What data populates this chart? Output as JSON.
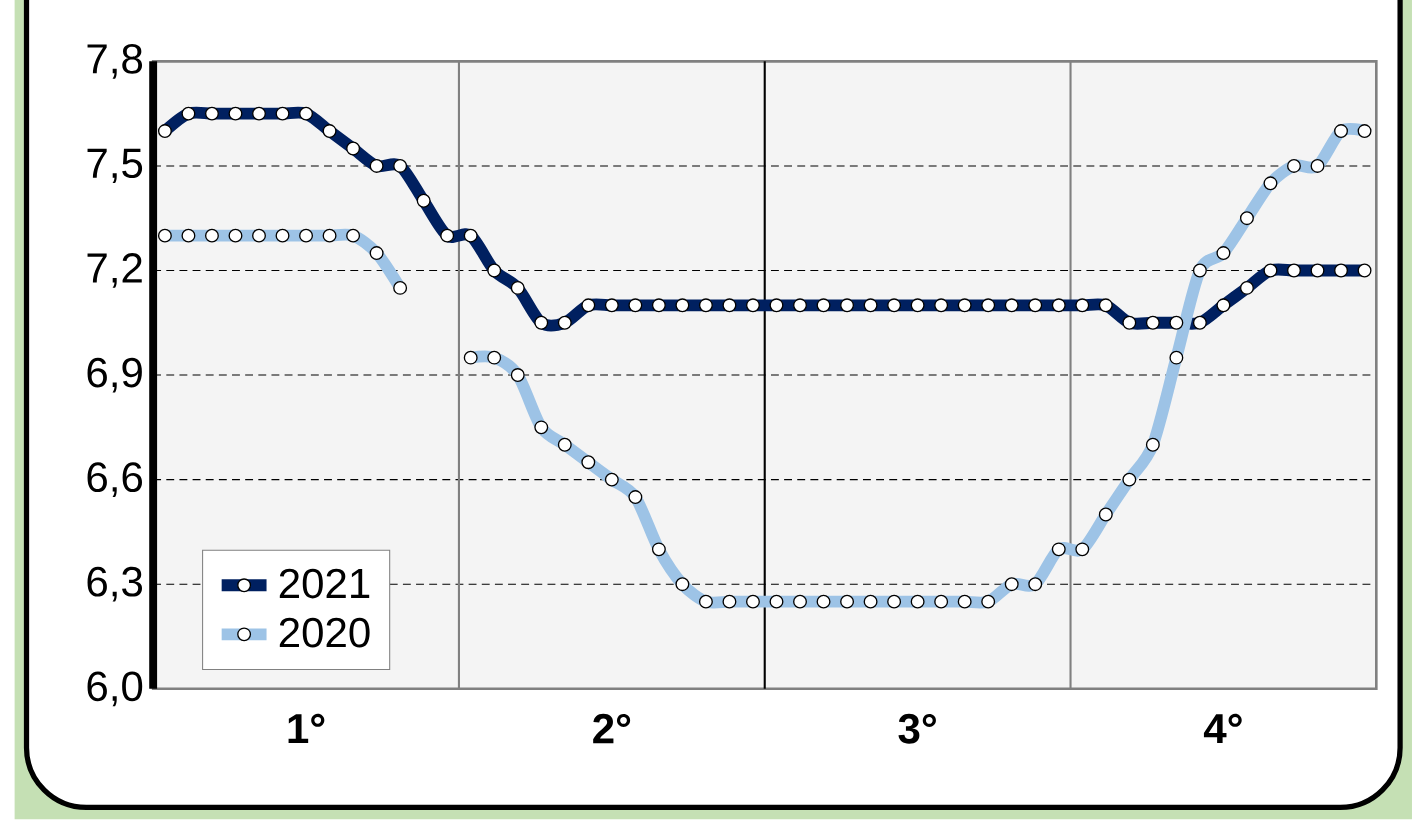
{
  "chart_data": {
    "type": "line",
    "categories": [
      null,
      null,
      null,
      null,
      null,
      null,
      "1°",
      null,
      null,
      null,
      null,
      null,
      null,
      null,
      null,
      null,
      null,
      null,
      null,
      "2°",
      null,
      null,
      null,
      null,
      null,
      null,
      null,
      null,
      null,
      null,
      null,
      null,
      "3°",
      null,
      null,
      null,
      null,
      null,
      null,
      null,
      null,
      null,
      null,
      null,
      null,
      "4°",
      null,
      null,
      null,
      null,
      null,
      null
    ],
    "series": [
      {
        "name": "2021",
        "color": "#002060",
        "values": [
          7.6,
          7.65,
          7.65,
          7.65,
          7.65,
          7.65,
          7.65,
          7.6,
          7.55,
          7.5,
          7.5,
          7.4,
          7.3,
          7.3,
          7.2,
          7.15,
          7.05,
          7.05,
          7.1,
          7.1,
          7.1,
          7.1,
          7.1,
          7.1,
          7.1,
          7.1,
          7.1,
          7.1,
          7.1,
          7.1,
          7.1,
          7.1,
          7.1,
          7.1,
          7.1,
          7.1,
          7.1,
          7.1,
          7.1,
          7.1,
          7.1,
          7.05,
          7.05,
          7.05,
          7.05,
          7.1,
          7.15,
          7.2,
          7.2,
          7.2,
          7.2,
          7.2
        ]
      },
      {
        "name": "2020",
        "color": "#9dc3e6",
        "values": [
          7.3,
          7.3,
          7.3,
          7.3,
          7.3,
          7.3,
          7.3,
          7.3,
          7.3,
          7.25,
          7.15,
          null,
          null,
          6.95,
          6.95,
          6.9,
          6.75,
          6.7,
          6.65,
          6.6,
          6.55,
          6.4,
          6.3,
          6.25,
          6.25,
          6.25,
          6.25,
          6.25,
          6.25,
          6.25,
          6.25,
          6.25,
          6.25,
          6.25,
          6.25,
          6.25,
          6.3,
          6.3,
          6.4,
          6.4,
          6.5,
          6.6,
          6.7,
          6.95,
          7.2,
          7.25,
          7.35,
          7.45,
          7.5,
          7.5,
          7.6,
          7.6
        ]
      }
    ],
    "ylim": [
      6.0,
      7.8
    ],
    "yticks": [
      {
        "value": 6.0,
        "label": "6,0"
      },
      {
        "value": 6.3,
        "label": "6,3"
      },
      {
        "value": 6.6,
        "label": "6,6"
      },
      {
        "value": 6.9,
        "label": "6,9"
      },
      {
        "value": 7.2,
        "label": "7,2"
      },
      {
        "value": 7.5,
        "label": "7,5"
      },
      {
        "value": 7.8,
        "label": "7,8"
      }
    ],
    "grid": "y",
    "legend": "bottom left",
    "marker": "circle",
    "line_style": "solid"
  }
}
